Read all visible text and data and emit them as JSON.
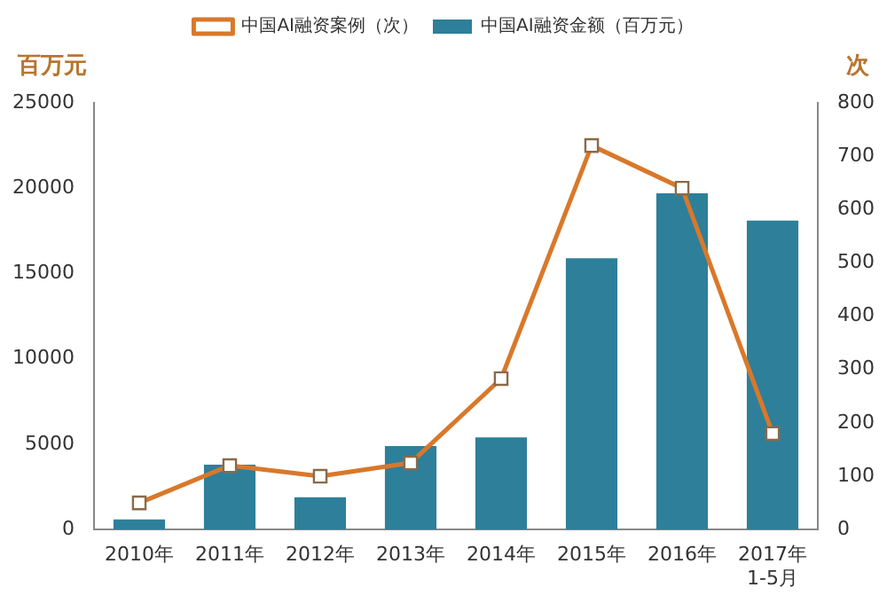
{
  "chart_data": {
    "type": "bar",
    "categories": [
      "2010年",
      "2011年",
      "2012年",
      "2013年",
      "2014年",
      "2015年",
      "2016年",
      "2017年\n1-5月"
    ],
    "series": [
      {
        "name": "中国AI融资金额（百万元）",
        "color": "#2e7f9a",
        "values": [
          600,
          3800,
          1900,
          4900,
          5400,
          15900,
          19700,
          18100
        ]
      },
      {
        "name": "中国AI融资案例（次）",
        "type": "line",
        "axis": "y2",
        "color": "#d9782a",
        "marker": "square",
        "values": [
          50,
          120,
          100,
          125,
          283,
          720,
          640,
          180
        ]
      }
    ],
    "ylabel": "百万元",
    "y2label": "次",
    "ylim": [
      0,
      25000
    ],
    "yticks": [
      0,
      5000,
      10000,
      15000,
      20000,
      25000
    ],
    "y2lim": [
      0,
      800
    ],
    "y2ticks": [
      0,
      100,
      200,
      300,
      400,
      500,
      600,
      700,
      800
    ],
    "grid": false,
    "legend": "top"
  }
}
